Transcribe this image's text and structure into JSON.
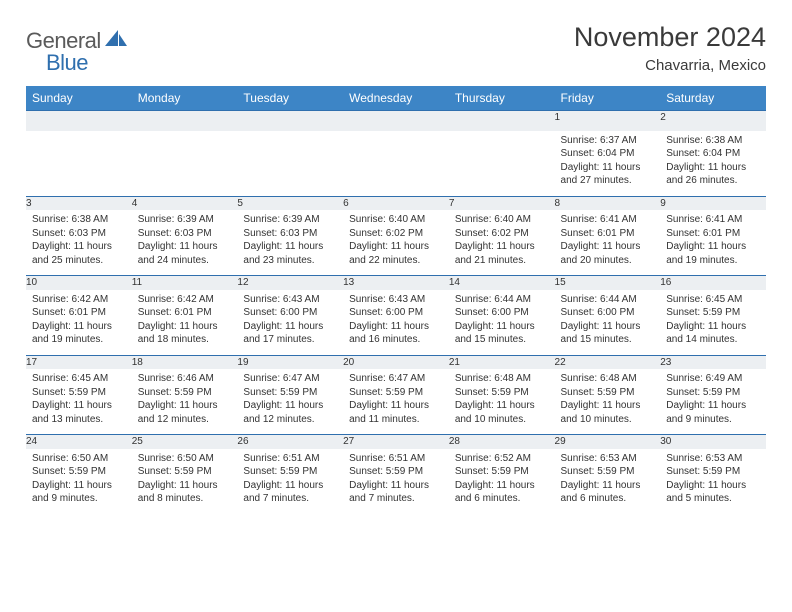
{
  "brand": {
    "part1": "General",
    "part2": "Blue"
  },
  "title": "November 2024",
  "location": "Chavarria, Mexico",
  "colors": {
    "header_bg": "#3d85c6",
    "header_border": "#2f6fae",
    "daynum_bg": "#eceff2",
    "text": "#333333",
    "brand_gray": "#5a5a5a",
    "brand_blue": "#2f6fae"
  },
  "typography": {
    "title_fontsize": 27,
    "location_fontsize": 15,
    "header_fontsize": 12,
    "daynum_fontsize": 12,
    "detail_fontsize": 10
  },
  "day_headers": [
    "Sunday",
    "Monday",
    "Tuesday",
    "Wednesday",
    "Thursday",
    "Friday",
    "Saturday"
  ],
  "weeks": [
    [
      null,
      null,
      null,
      null,
      null,
      {
        "n": "1",
        "sr": "6:37 AM",
        "ss": "6:04 PM",
        "dl": "11 hours and 27 minutes."
      },
      {
        "n": "2",
        "sr": "6:38 AM",
        "ss": "6:04 PM",
        "dl": "11 hours and 26 minutes."
      }
    ],
    [
      {
        "n": "3",
        "sr": "6:38 AM",
        "ss": "6:03 PM",
        "dl": "11 hours and 25 minutes."
      },
      {
        "n": "4",
        "sr": "6:39 AM",
        "ss": "6:03 PM",
        "dl": "11 hours and 24 minutes."
      },
      {
        "n": "5",
        "sr": "6:39 AM",
        "ss": "6:03 PM",
        "dl": "11 hours and 23 minutes."
      },
      {
        "n": "6",
        "sr": "6:40 AM",
        "ss": "6:02 PM",
        "dl": "11 hours and 22 minutes."
      },
      {
        "n": "7",
        "sr": "6:40 AM",
        "ss": "6:02 PM",
        "dl": "11 hours and 21 minutes."
      },
      {
        "n": "8",
        "sr": "6:41 AM",
        "ss": "6:01 PM",
        "dl": "11 hours and 20 minutes."
      },
      {
        "n": "9",
        "sr": "6:41 AM",
        "ss": "6:01 PM",
        "dl": "11 hours and 19 minutes."
      }
    ],
    [
      {
        "n": "10",
        "sr": "6:42 AM",
        "ss": "6:01 PM",
        "dl": "11 hours and 19 minutes."
      },
      {
        "n": "11",
        "sr": "6:42 AM",
        "ss": "6:01 PM",
        "dl": "11 hours and 18 minutes."
      },
      {
        "n": "12",
        "sr": "6:43 AM",
        "ss": "6:00 PM",
        "dl": "11 hours and 17 minutes."
      },
      {
        "n": "13",
        "sr": "6:43 AM",
        "ss": "6:00 PM",
        "dl": "11 hours and 16 minutes."
      },
      {
        "n": "14",
        "sr": "6:44 AM",
        "ss": "6:00 PM",
        "dl": "11 hours and 15 minutes."
      },
      {
        "n": "15",
        "sr": "6:44 AM",
        "ss": "6:00 PM",
        "dl": "11 hours and 15 minutes."
      },
      {
        "n": "16",
        "sr": "6:45 AM",
        "ss": "5:59 PM",
        "dl": "11 hours and 14 minutes."
      }
    ],
    [
      {
        "n": "17",
        "sr": "6:45 AM",
        "ss": "5:59 PM",
        "dl": "11 hours and 13 minutes."
      },
      {
        "n": "18",
        "sr": "6:46 AM",
        "ss": "5:59 PM",
        "dl": "11 hours and 12 minutes."
      },
      {
        "n": "19",
        "sr": "6:47 AM",
        "ss": "5:59 PM",
        "dl": "11 hours and 12 minutes."
      },
      {
        "n": "20",
        "sr": "6:47 AM",
        "ss": "5:59 PM",
        "dl": "11 hours and 11 minutes."
      },
      {
        "n": "21",
        "sr": "6:48 AM",
        "ss": "5:59 PM",
        "dl": "11 hours and 10 minutes."
      },
      {
        "n": "22",
        "sr": "6:48 AM",
        "ss": "5:59 PM",
        "dl": "11 hours and 10 minutes."
      },
      {
        "n": "23",
        "sr": "6:49 AM",
        "ss": "5:59 PM",
        "dl": "11 hours and 9 minutes."
      }
    ],
    [
      {
        "n": "24",
        "sr": "6:50 AM",
        "ss": "5:59 PM",
        "dl": "11 hours and 9 minutes."
      },
      {
        "n": "25",
        "sr": "6:50 AM",
        "ss": "5:59 PM",
        "dl": "11 hours and 8 minutes."
      },
      {
        "n": "26",
        "sr": "6:51 AM",
        "ss": "5:59 PM",
        "dl": "11 hours and 7 minutes."
      },
      {
        "n": "27",
        "sr": "6:51 AM",
        "ss": "5:59 PM",
        "dl": "11 hours and 7 minutes."
      },
      {
        "n": "28",
        "sr": "6:52 AM",
        "ss": "5:59 PM",
        "dl": "11 hours and 6 minutes."
      },
      {
        "n": "29",
        "sr": "6:53 AM",
        "ss": "5:59 PM",
        "dl": "11 hours and 6 minutes."
      },
      {
        "n": "30",
        "sr": "6:53 AM",
        "ss": "5:59 PM",
        "dl": "11 hours and 5 minutes."
      }
    ]
  ],
  "labels": {
    "sunrise": "Sunrise: ",
    "sunset": "Sunset: ",
    "daylight": "Daylight: "
  }
}
